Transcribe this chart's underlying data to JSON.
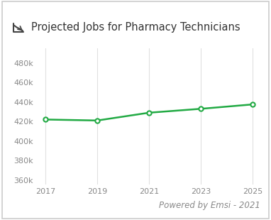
{
  "x": [
    2017,
    2019,
    2021,
    2023,
    2025
  ],
  "y": [
    422000,
    421000,
    429000,
    433000,
    437500
  ],
  "line_color": "#22aa44",
  "marker_color": "#22aa44",
  "marker_face": "white",
  "title": "Projected Jobs for Pharmacy Technicians",
  "title_fontsize": 10.5,
  "title_color": "#333333",
  "tick_color": "#888888",
  "grid_color": "#e0e0e0",
  "background_color": "#ffffff",
  "border_color": "#cccccc",
  "ylim": [
    355000,
    495000
  ],
  "yticks": [
    360000,
    380000,
    400000,
    420000,
    440000,
    460000,
    480000
  ],
  "xticks": [
    2017,
    2019,
    2021,
    2023,
    2025
  ],
  "watermark": "Powered by Emsi - 2021",
  "watermark_fontsize": 8.5,
  "watermark_color": "#888888",
  "icon_color": "#444444"
}
